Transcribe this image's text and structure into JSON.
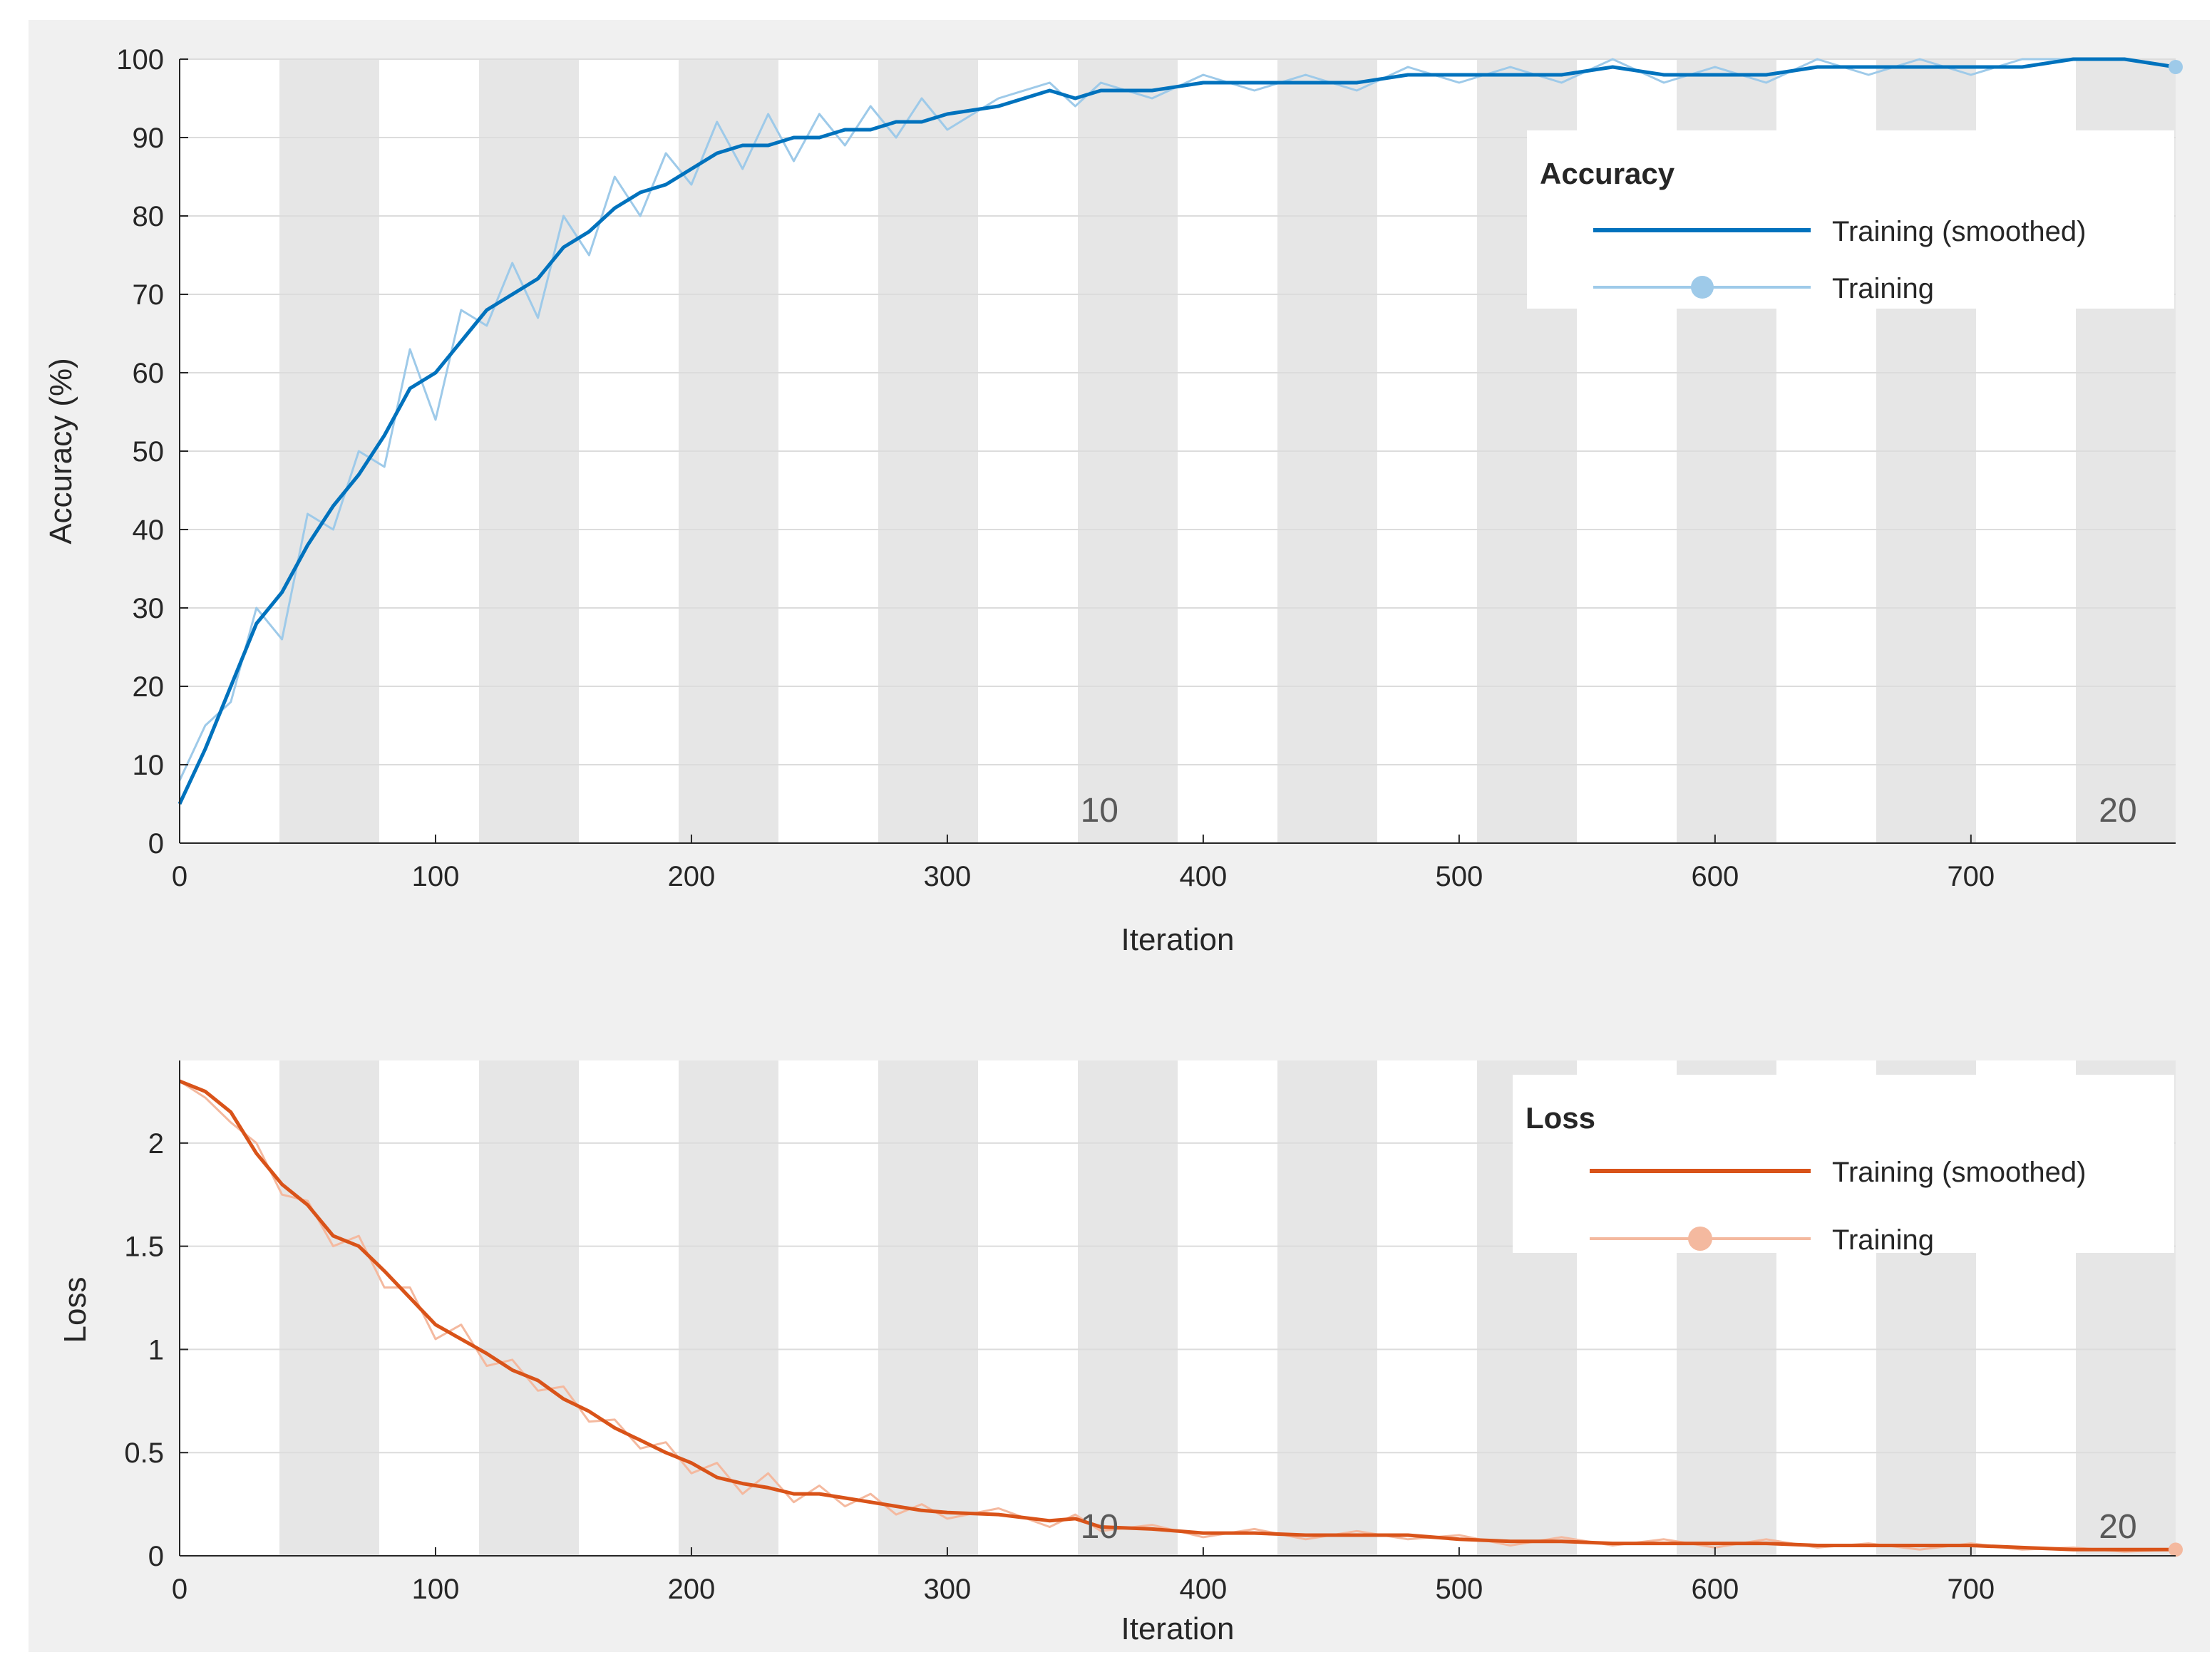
{
  "colors": {
    "panel_bg": "#f0f0f0",
    "plot_bg": "#ffffff",
    "epoch_band": "#e6e6e6",
    "grid": "#dcdcdc",
    "axis": "#262626",
    "accuracy_smoothed": "#0072bd",
    "accuracy_raw": "#9ecae9",
    "loss_smoothed": "#d95319",
    "loss_raw": "#f4b99f",
    "epoch_label": "#595959"
  },
  "chart_data": [
    {
      "type": "line",
      "name": "accuracy",
      "title": "",
      "xlabel": "Iteration",
      "ylabel": "Accuracy (%)",
      "xlim": [
        0,
        780
      ],
      "ylim": [
        0,
        100
      ],
      "xticks": [
        "0",
        "100",
        "200",
        "300",
        "400",
        "500",
        "600",
        "700"
      ],
      "yticks": [
        "0",
        "10",
        "20",
        "30",
        "40",
        "50",
        "60",
        "70",
        "80",
        "90",
        "100"
      ],
      "epoch_labels": [
        {
          "label": "10",
          "x": 352
        },
        {
          "label": "20",
          "x": 750
        }
      ],
      "legend": {
        "title": "Accuracy",
        "placement": "top-right",
        "entries": [
          "Training (smoothed)",
          "Training"
        ]
      },
      "series": [
        {
          "name": "Training (smoothed)",
          "x": [
            0,
            10,
            20,
            30,
            40,
            50,
            60,
            70,
            80,
            90,
            100,
            110,
            120,
            130,
            140,
            150,
            160,
            170,
            180,
            190,
            200,
            210,
            220,
            230,
            240,
            250,
            260,
            270,
            280,
            290,
            300,
            320,
            340,
            350,
            360,
            380,
            400,
            420,
            440,
            460,
            480,
            500,
            520,
            540,
            560,
            580,
            600,
            620,
            640,
            660,
            680,
            700,
            720,
            740,
            760,
            780
          ],
          "values": [
            5,
            12,
            20,
            28,
            32,
            38,
            43,
            47,
            52,
            58,
            60,
            64,
            68,
            70,
            72,
            76,
            78,
            81,
            83,
            84,
            86,
            88,
            89,
            89,
            90,
            90,
            91,
            91,
            92,
            92,
            93,
            94,
            96,
            95,
            96,
            96,
            97,
            97,
            97,
            97,
            98,
            98,
            98,
            98,
            99,
            98,
            98,
            98,
            99,
            99,
            99,
            99,
            99,
            100,
            100,
            99
          ]
        },
        {
          "name": "Training",
          "x": [
            0,
            10,
            20,
            30,
            40,
            50,
            60,
            70,
            80,
            90,
            100,
            110,
            120,
            130,
            140,
            150,
            160,
            170,
            180,
            190,
            200,
            210,
            220,
            230,
            240,
            250,
            260,
            270,
            280,
            290,
            300,
            320,
            340,
            350,
            360,
            380,
            400,
            420,
            440,
            460,
            480,
            500,
            520,
            540,
            560,
            580,
            600,
            620,
            640,
            660,
            680,
            700,
            720,
            740,
            760,
            780
          ],
          "values": [
            8,
            15,
            18,
            30,
            26,
            42,
            40,
            50,
            48,
            63,
            54,
            68,
            66,
            74,
            67,
            80,
            75,
            85,
            80,
            88,
            84,
            92,
            86,
            93,
            87,
            93,
            89,
            94,
            90,
            95,
            91,
            95,
            97,
            94,
            97,
            95,
            98,
            96,
            98,
            96,
            99,
            97,
            99,
            97,
            100,
            97,
            99,
            97,
            100,
            98,
            100,
            98,
            100,
            100,
            100,
            99
          ]
        }
      ]
    },
    {
      "type": "line",
      "name": "loss",
      "title": "",
      "xlabel": "Iteration",
      "ylabel": "Loss",
      "xlim": [
        0,
        780
      ],
      "ylim": [
        0,
        2.4
      ],
      "xticks": [
        "0",
        "100",
        "200",
        "300",
        "400",
        "500",
        "600",
        "700"
      ],
      "yticks": [
        "0",
        "0.5",
        "1",
        "1.5",
        "2"
      ],
      "epoch_labels": [
        {
          "label": "10",
          "x": 352
        },
        {
          "label": "20",
          "x": 750
        }
      ],
      "legend": {
        "title": "Loss",
        "placement": "top-right",
        "entries": [
          "Training (smoothed)",
          "Training"
        ]
      },
      "series": [
        {
          "name": "Training (smoothed)",
          "x": [
            0,
            10,
            20,
            30,
            40,
            50,
            60,
            70,
            80,
            90,
            100,
            110,
            120,
            130,
            140,
            150,
            160,
            170,
            180,
            190,
            200,
            210,
            220,
            230,
            240,
            250,
            260,
            270,
            280,
            290,
            300,
            320,
            340,
            350,
            360,
            380,
            400,
            420,
            440,
            460,
            480,
            500,
            520,
            540,
            560,
            580,
            600,
            620,
            640,
            660,
            680,
            700,
            720,
            740,
            760,
            780
          ],
          "values": [
            2.3,
            2.25,
            2.15,
            1.95,
            1.8,
            1.7,
            1.55,
            1.5,
            1.38,
            1.25,
            1.12,
            1.05,
            0.98,
            0.9,
            0.85,
            0.76,
            0.7,
            0.62,
            0.56,
            0.5,
            0.45,
            0.38,
            0.35,
            0.33,
            0.3,
            0.3,
            0.28,
            0.26,
            0.24,
            0.22,
            0.21,
            0.2,
            0.17,
            0.18,
            0.14,
            0.13,
            0.11,
            0.11,
            0.1,
            0.1,
            0.1,
            0.08,
            0.07,
            0.07,
            0.06,
            0.06,
            0.06,
            0.06,
            0.05,
            0.05,
            0.05,
            0.05,
            0.04,
            0.03,
            0.03,
            0.03
          ]
        },
        {
          "name": "Training",
          "x": [
            0,
            10,
            20,
            30,
            40,
            50,
            60,
            70,
            80,
            90,
            100,
            110,
            120,
            130,
            140,
            150,
            160,
            170,
            180,
            190,
            200,
            210,
            220,
            230,
            240,
            250,
            260,
            270,
            280,
            290,
            300,
            320,
            340,
            350,
            360,
            380,
            400,
            420,
            440,
            460,
            480,
            500,
            520,
            540,
            560,
            580,
            600,
            620,
            640,
            660,
            680,
            700,
            720,
            740,
            760,
            780
          ],
          "values": [
            2.3,
            2.22,
            2.1,
            2.0,
            1.75,
            1.72,
            1.5,
            1.55,
            1.3,
            1.3,
            1.05,
            1.12,
            0.92,
            0.95,
            0.8,
            0.82,
            0.65,
            0.66,
            0.52,
            0.55,
            0.4,
            0.45,
            0.3,
            0.4,
            0.26,
            0.34,
            0.24,
            0.3,
            0.2,
            0.25,
            0.18,
            0.23,
            0.14,
            0.2,
            0.12,
            0.15,
            0.09,
            0.13,
            0.08,
            0.12,
            0.08,
            0.1,
            0.05,
            0.09,
            0.05,
            0.08,
            0.04,
            0.08,
            0.04,
            0.06,
            0.03,
            0.06,
            0.03,
            0.04,
            0.02,
            0.03
          ]
        }
      ]
    }
  ]
}
